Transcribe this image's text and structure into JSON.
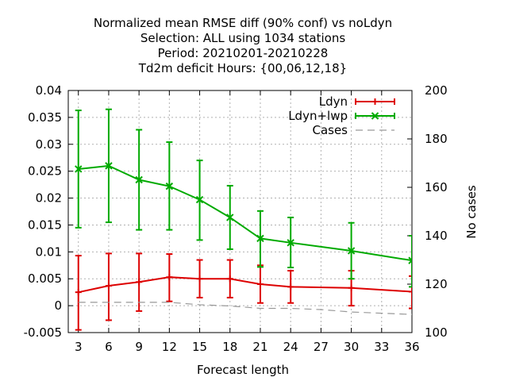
{
  "chart_data": {
    "type": "line",
    "title_lines": [
      "Normalized mean RMSE diff (90% conf) vs noLdyn",
      "Selection: ALL using  1034 stations",
      "Period: 20210201-20210228",
      "Td2m deficit   Hours: {00,06,12,18}"
    ],
    "xlabel": "Forecast length",
    "ylabel": "",
    "y2label": "No cases",
    "x_ticks": [
      3,
      6,
      9,
      12,
      15,
      18,
      21,
      24,
      27,
      30,
      33,
      36
    ],
    "xlim": [
      2,
      36
    ],
    "ylim": [
      -0.005,
      0.04
    ],
    "y_ticks": [
      -0.005,
      0,
      0.005,
      0.01,
      0.015,
      0.02,
      0.025,
      0.03,
      0.035,
      0.04
    ],
    "y_tick_labels": [
      "-0.005",
      "0",
      "0.005",
      "0.01",
      "0.015",
      "0.02",
      "0.025",
      "0.03",
      "0.035",
      "0.04"
    ],
    "y2lim": [
      100,
      200
    ],
    "y2_ticks": [
      100,
      120,
      140,
      160,
      180,
      200
    ],
    "grid": true,
    "legend_position": "top-right",
    "series": [
      {
        "name": "Ldyn",
        "color": "#dd0000",
        "marker": "plus",
        "axis": "y",
        "x": [
          3,
          6,
          9,
          12,
          15,
          18,
          21,
          24,
          30,
          36
        ],
        "y": [
          0.0025,
          0.0037,
          0.0044,
          0.0053,
          0.005,
          0.005,
          0.004,
          0.0035,
          0.0033,
          0.0026
        ],
        "err_low": [
          -0.0045,
          -0.0027,
          -0.001,
          0.0008,
          0.0015,
          0.0015,
          0.0005,
          0.0005,
          0.0,
          -0.0005
        ],
        "err_high": [
          0.0093,
          0.0097,
          0.0097,
          0.0096,
          0.0085,
          0.0085,
          0.0075,
          0.0065,
          0.0065,
          0.0055
        ]
      },
      {
        "name": "Ldyn+lwp",
        "color": "#00aa00",
        "marker": "cross",
        "axis": "y",
        "x": [
          3,
          6,
          9,
          12,
          15,
          18,
          21,
          24,
          30,
          36
        ],
        "y": [
          0.0254,
          0.026,
          0.0234,
          0.0222,
          0.0197,
          0.0164,
          0.0125,
          0.0117,
          0.0102,
          0.0084
        ],
        "err_low": [
          0.0145,
          0.0155,
          0.0141,
          0.0141,
          0.0122,
          0.0105,
          0.0072,
          0.0071,
          0.005,
          0.0035
        ],
        "err_high": [
          0.0363,
          0.0365,
          0.0327,
          0.0304,
          0.027,
          0.0223,
          0.0176,
          0.0164,
          0.0154,
          0.013
        ]
      },
      {
        "name": "Cases",
        "color": "#999999",
        "marker": "none",
        "axis": "y2",
        "style": "dashed",
        "x": [
          3,
          6,
          9,
          12,
          15,
          18,
          21,
          24,
          27,
          30,
          33,
          36
        ],
        "y": [
          112.5,
          112.5,
          112.5,
          112.5,
          111.5,
          111,
          110,
          110,
          109.5,
          108.5,
          108,
          107.5
        ]
      }
    ]
  }
}
